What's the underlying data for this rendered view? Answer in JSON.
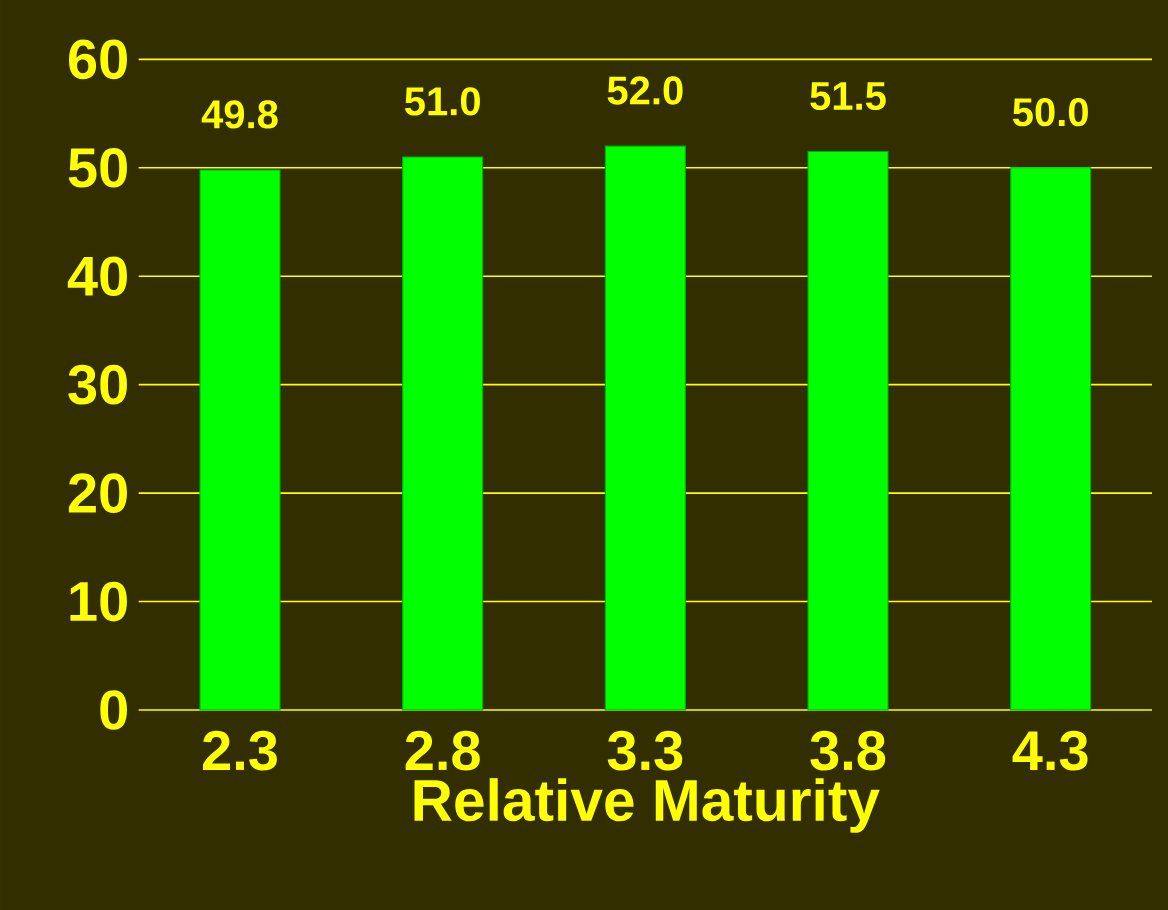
{
  "chart_data": {
    "type": "bar",
    "xlabel": "Relative Maturity",
    "categories": [
      "2.3",
      "2.8",
      "3.3",
      "3.8",
      "4.3"
    ],
    "values": [
      49.8,
      51.0,
      52.0,
      51.5,
      50.0
    ],
    "value_labels": [
      "49.8",
      "51.0",
      "52.0",
      "51.5",
      "50.0"
    ],
    "color": "#00ff00",
    "ylim": [
      0,
      60
    ],
    "yticks": [
      0,
      10,
      20,
      30,
      40,
      50,
      60
    ],
    "grid": "y"
  }
}
